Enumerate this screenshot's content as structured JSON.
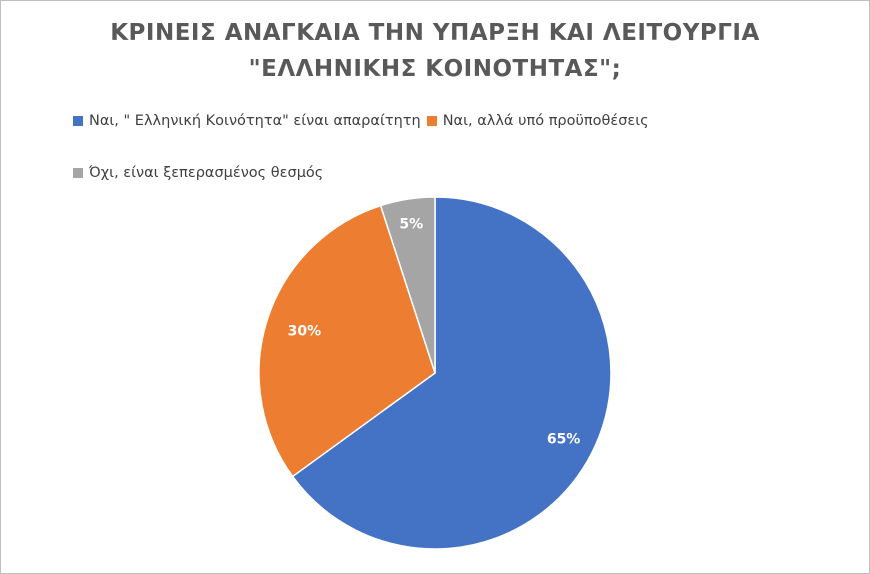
{
  "chart_data": {
    "type": "pie",
    "title": "ΚΡΙΝΕΙΣ ΑΝΑΓΚΑΙΑ ΤΗΝ ΥΠΑΡΞΗ ΚΑΙ ΛΕΙΤΟΥΡΓΙΑ \"ΕΛΛΗΝΙΚΗΣ ΚΟΙΝΟΤΗΤΑΣ\";",
    "title_lines": [
      "ΚΡΙΝΕΙΣ ΑΝΑΓΚΑΙΑ ΤΗΝ ΥΠΑΡΞΗ ΚΑΙ ΛΕΙΤΟΥΡΓΙΑ",
      "\"ΕΛΛΗΝΙΚΗΣ ΚΟΙΝΟΤΗΤΑΣ\";"
    ],
    "categories": [
      "Ναι, \" Ελληνική Κοινότητα\" είναι απαραίτητη",
      "Ναι, αλλά υπό προϋποθέσεις",
      "Όχι, είναι ξεπερασμένος θεσμός"
    ],
    "values": [
      65,
      30,
      5
    ],
    "labels": [
      "65%",
      "30%",
      "5%"
    ],
    "colors": [
      "#4472c4",
      "#ed7d31",
      "#a5a5a5"
    ],
    "legend_position": "top",
    "data_label_color": "#ffffff"
  }
}
